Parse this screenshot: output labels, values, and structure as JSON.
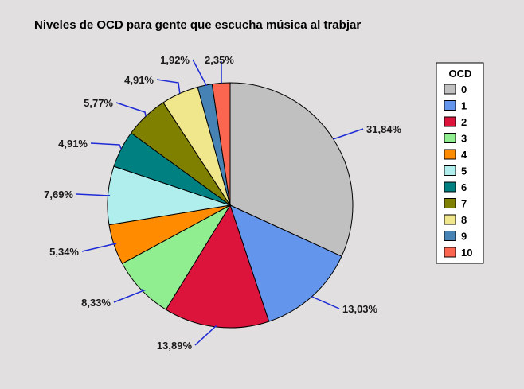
{
  "chart_data": {
    "type": "pie",
    "title": "Niveles de OCD para gente que escucha música al trabjar",
    "legend_title": "OCD",
    "legend_position": "right",
    "categories": [
      "0",
      "1",
      "2",
      "3",
      "4",
      "5",
      "6",
      "7",
      "8",
      "9",
      "10"
    ],
    "values": [
      31.84,
      13.03,
      13.89,
      8.33,
      5.34,
      7.69,
      4.91,
      5.77,
      4.91,
      1.92,
      2.35
    ],
    "labels": [
      "31,84%",
      "13,03%",
      "13,89%",
      "8,33%",
      "5,34%",
      "7,69%",
      "4,91%",
      "5,77%",
      "4,91%",
      "1,92%",
      "2,35%"
    ],
    "colors": [
      "#c0c0c0",
      "#6495ed",
      "#dc143c",
      "#90ee90",
      "#ff8c00",
      "#b0eeee",
      "#008080",
      "#808000",
      "#f0e68c",
      "#4682b4",
      "#fa6650"
    ],
    "leader_color": "#1e2bd6"
  }
}
